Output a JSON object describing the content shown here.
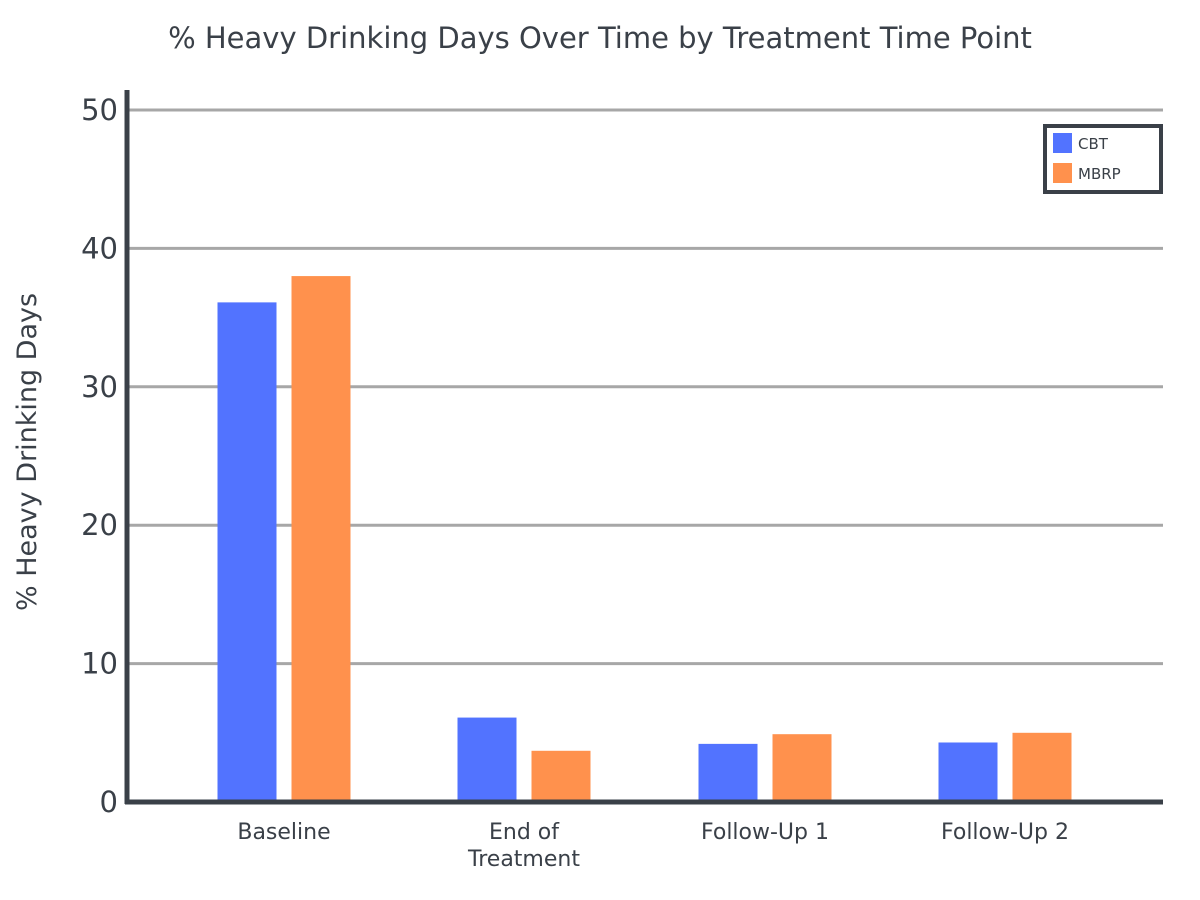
{
  "chart_data": {
    "type": "bar",
    "title": "% Heavy Drinking Days Over Time by Treatment Time Point",
    "xlabel": "",
    "ylabel": "% Heavy Drinking Days",
    "ylim": [
      0,
      50
    ],
    "yticks": [
      "0",
      "10",
      "20",
      "30",
      "40",
      "50"
    ],
    "ytick_values": [
      0,
      10,
      20,
      30,
      40,
      50
    ],
    "categories": [
      [
        "Baseline"
      ],
      [
        "End of",
        "Treatment"
      ],
      [
        "Follow-Up 1"
      ],
      [
        "Follow-Up 2"
      ]
    ],
    "series": [
      {
        "name": "CBT",
        "color": "#5273ff",
        "values": [
          36.1,
          6.1,
          4.2,
          4.3
        ]
      },
      {
        "name": "MBRP",
        "color": "#ff914d",
        "values": [
          38.0,
          3.7,
          4.9,
          5.0
        ]
      }
    ],
    "grid": true,
    "legend_position": "top-right"
  }
}
